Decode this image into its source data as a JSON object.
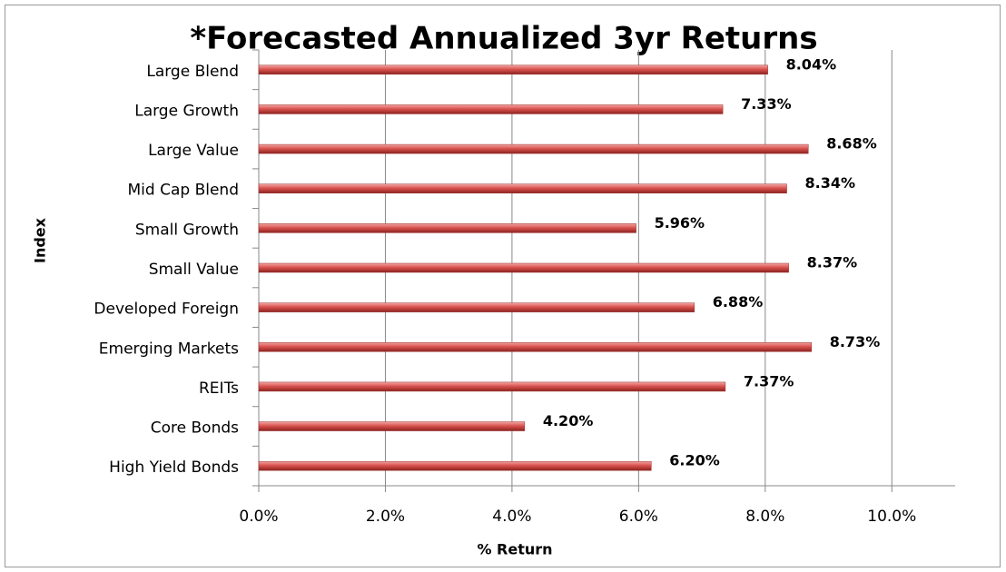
{
  "chart_data": {
    "type": "bar",
    "orientation": "horizontal",
    "title": "*Forecasted Annualized 3yr Returns",
    "x_label": "% Return",
    "y_label": "Index",
    "categories": [
      "Large Blend",
      "Large Growth",
      "Large Value",
      "Mid Cap Blend",
      "Small Growth",
      "Small Value",
      "Developed Foreign",
      "Emerging Markets",
      "REITs",
      "Core Bonds",
      "High Yield Bonds"
    ],
    "values": [
      8.04,
      7.33,
      8.68,
      8.34,
      5.96,
      8.37,
      6.88,
      8.73,
      7.37,
      4.2,
      6.2
    ],
    "value_labels": [
      "8.04%",
      "7.33%",
      "8.68%",
      "8.34%",
      "5.96%",
      "8.37%",
      "6.88%",
      "8.73%",
      "7.37%",
      "4.20%",
      "6.20%"
    ],
    "color": "#c0504d",
    "xlim": [
      0,
      11
    ],
    "xticks": [
      {
        "value": 0,
        "label": "0.0%"
      },
      {
        "value": 2,
        "label": "2.0%"
      },
      {
        "value": 4,
        "label": "4.0%"
      },
      {
        "value": 6,
        "label": "6.0%"
      },
      {
        "value": 8,
        "label": "8.0%"
      },
      {
        "value": 10,
        "label": "10.0%"
      }
    ],
    "grid": true
  }
}
